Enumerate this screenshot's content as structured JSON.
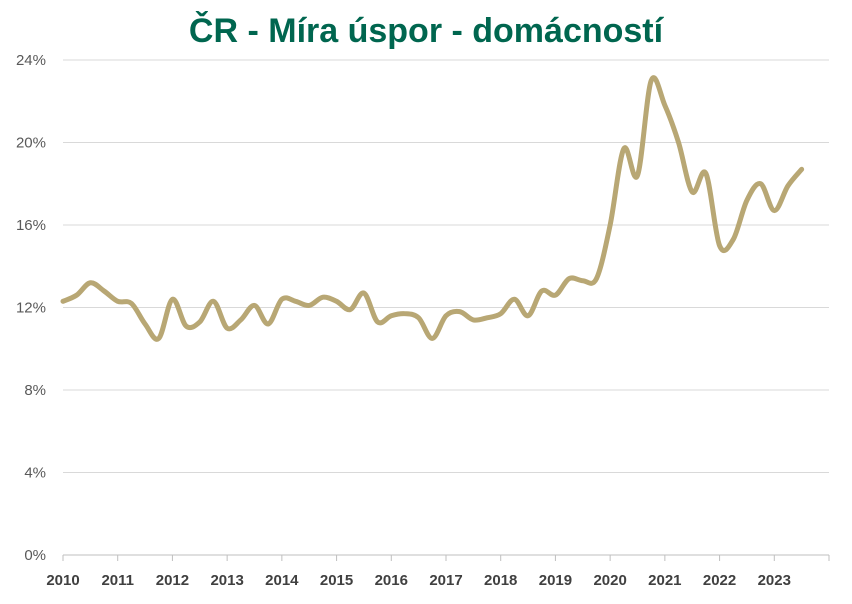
{
  "chart_data": {
    "type": "line",
    "title": "ČR - Míra úspor - domácností",
    "xlabel": "",
    "ylabel": "",
    "xlim": [
      2010,
      2024
    ],
    "ylim": [
      0,
      24
    ],
    "grid": true,
    "legend": "none",
    "line_color": "#b8a774",
    "title_color": "#00664f",
    "yticks": [
      0,
      4,
      8,
      12,
      16,
      20,
      24
    ],
    "ytick_labels": [
      "0%",
      "4%",
      "8%",
      "12%",
      "16%",
      "20%",
      "24%"
    ],
    "xticks": [
      2010,
      2011,
      2012,
      2013,
      2014,
      2015,
      2016,
      2017,
      2018,
      2019,
      2020,
      2021,
      2022,
      2023
    ],
    "xtick_labels": [
      "2010",
      "2011",
      "2012",
      "2013",
      "2014",
      "2015",
      "2016",
      "2017",
      "2018",
      "2019",
      "2020",
      "2021",
      "2022",
      "2023"
    ],
    "series": [
      {
        "x": [
          2010.0,
          2010.25,
          2010.5,
          2010.75,
          2011.0,
          2011.25,
          2011.5,
          2011.75,
          2012.0,
          2012.25,
          2012.5,
          2012.75,
          2013.0,
          2013.25,
          2013.5,
          2013.75,
          2014.0,
          2014.25,
          2014.5,
          2014.75,
          2015.0,
          2015.25,
          2015.5,
          2015.75,
          2016.0,
          2016.25,
          2016.5,
          2016.75,
          2017.0,
          2017.25,
          2017.5,
          2017.75,
          2018.0,
          2018.25,
          2018.5,
          2018.75,
          2019.0,
          2019.25,
          2019.5,
          2019.75,
          2020.0,
          2020.25,
          2020.5,
          2020.75,
          2021.0,
          2021.25,
          2021.5,
          2021.75,
          2022.0,
          2022.25,
          2022.5,
          2022.75,
          2023.0,
          2023.25,
          2023.5
        ],
        "values": [
          12.3,
          12.6,
          13.2,
          12.8,
          12.3,
          12.2,
          11.2,
          10.5,
          12.4,
          11.1,
          11.3,
          12.3,
          11.0,
          11.4,
          12.1,
          11.2,
          12.4,
          12.3,
          12.1,
          12.5,
          12.3,
          11.9,
          12.7,
          11.3,
          11.6,
          11.7,
          11.5,
          10.5,
          11.6,
          11.8,
          11.4,
          11.5,
          11.7,
          12.4,
          11.6,
          12.8,
          12.6,
          13.4,
          13.3,
          13.4,
          16.0,
          19.7,
          18.4,
          23.0,
          21.8,
          20.0,
          17.6,
          18.5,
          15.0,
          15.3,
          17.2,
          18.0,
          16.7,
          17.9,
          18.7
        ]
      }
    ]
  }
}
